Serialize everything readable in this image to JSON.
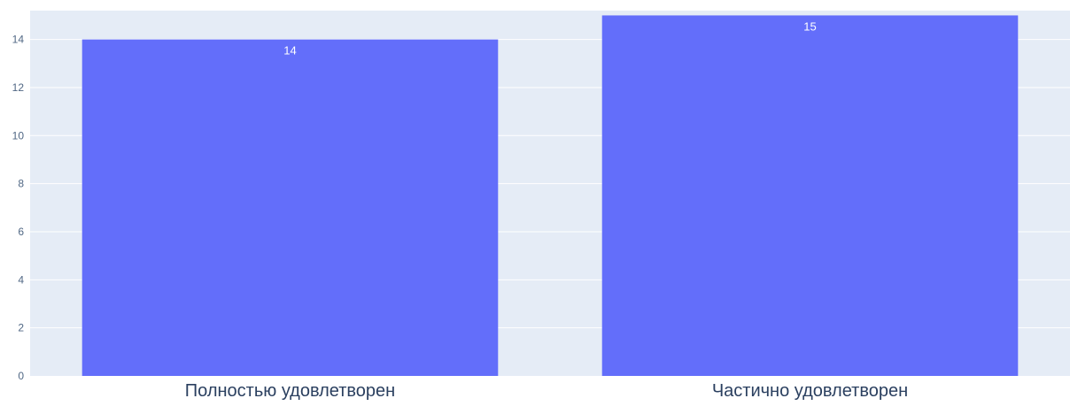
{
  "chart_data": {
    "type": "bar",
    "categories": [
      "Полностью удовлетворен",
      "Частично удовлетворен"
    ],
    "values": [
      14,
      15
    ],
    "data_labels": [
      "14",
      "15"
    ],
    "title": "",
    "xlabel": "",
    "ylabel": "",
    "ylim": [
      0,
      15.2
    ],
    "yticks": [
      0,
      2,
      4,
      6,
      8,
      10,
      12,
      14
    ],
    "grid": true,
    "legend": "none",
    "colors": {
      "bar": "#636efa",
      "plot_background": "#e5ecf6",
      "gridline": "#ffffff",
      "tick_text": "#506784",
      "category_text": "#2a3f5f",
      "data_label_text": "#ffffff"
    }
  }
}
